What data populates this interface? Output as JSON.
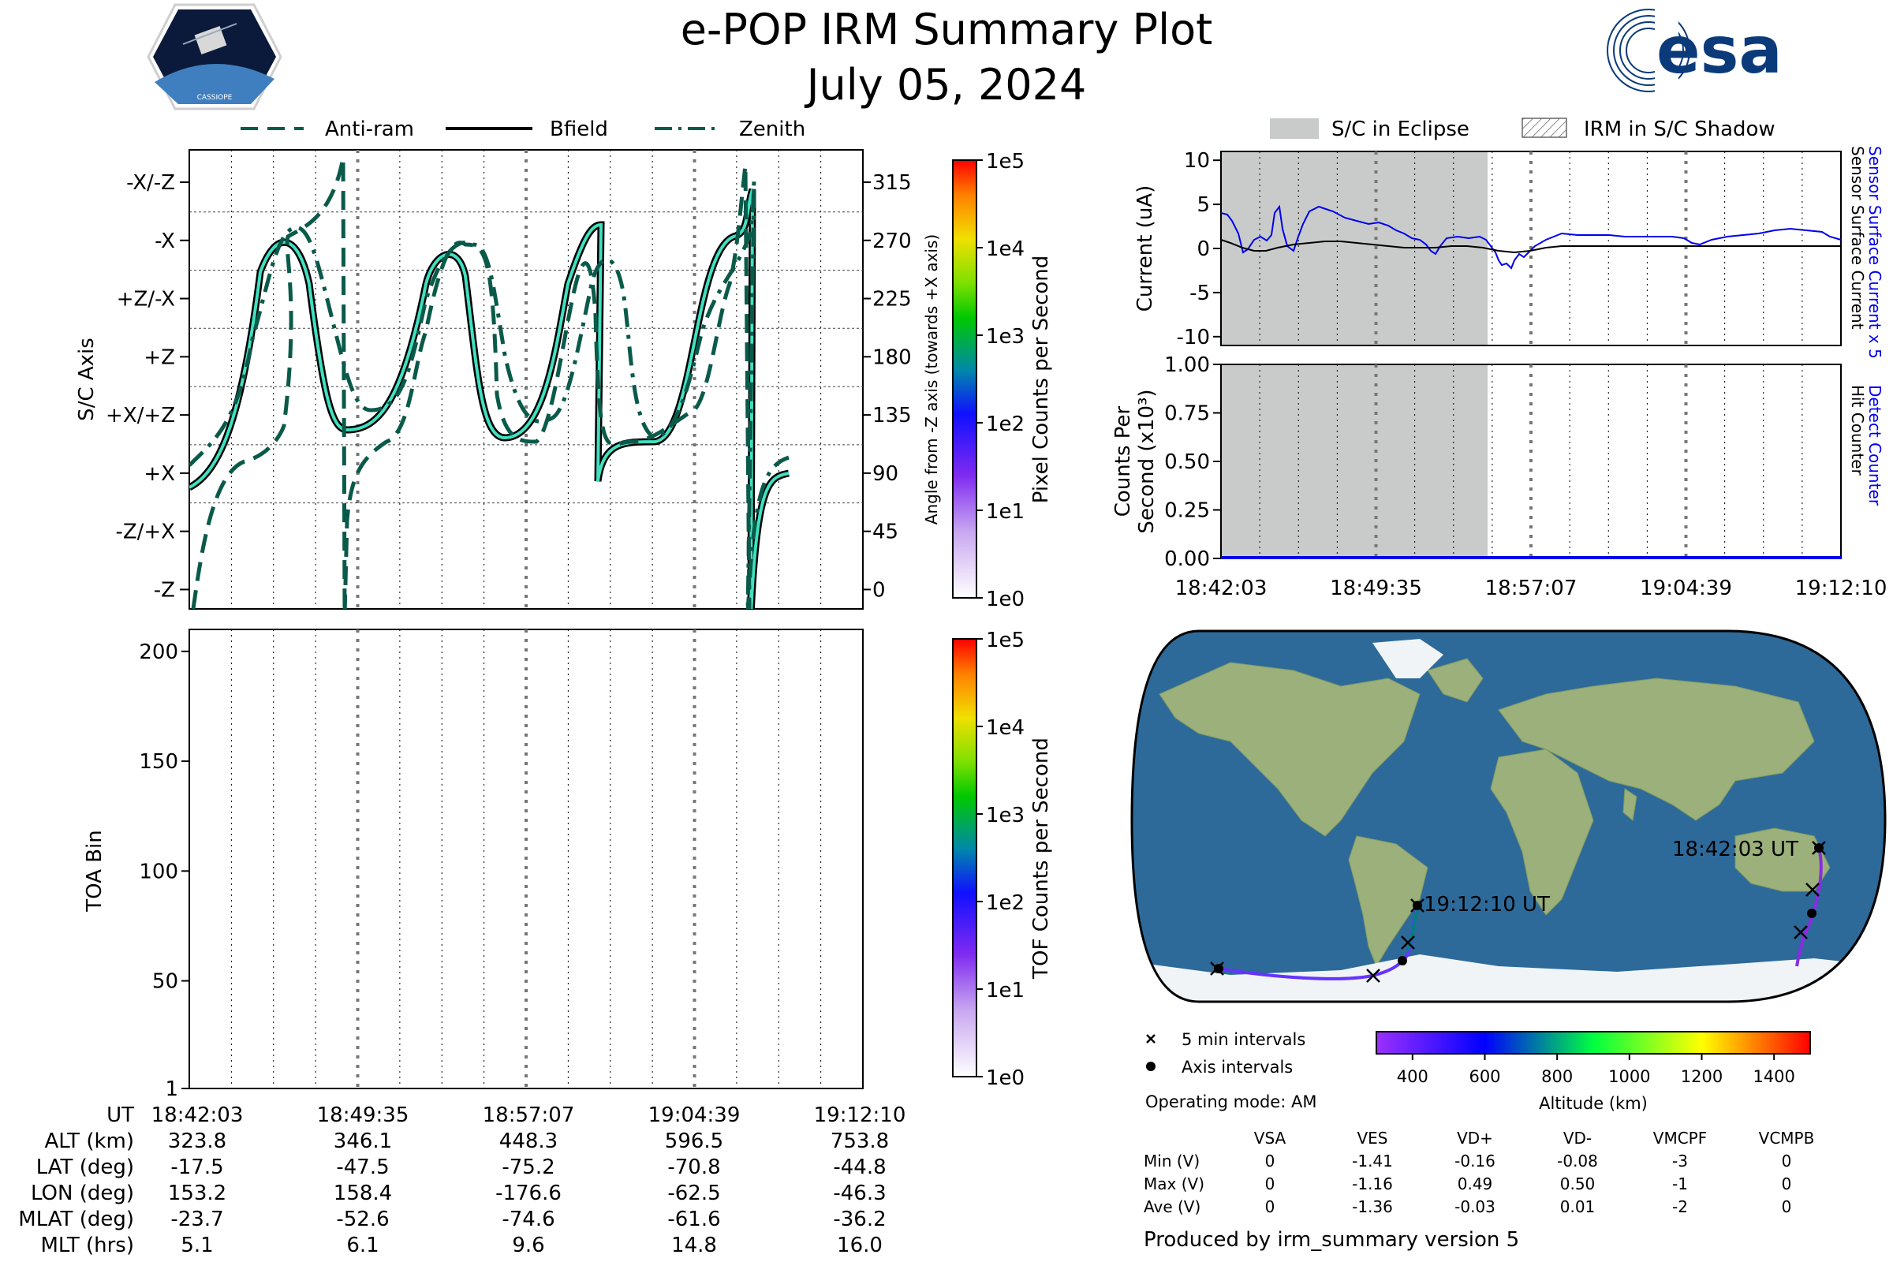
{
  "header": {
    "title": "e-POP IRM Summary Plot",
    "date": "July 05, 2024",
    "mission_logo_text": "CASSIOPE",
    "agency_logo_text": "esa",
    "agency_color": "#0a3a7a"
  },
  "colors": {
    "orientation_line": "#40e0c0",
    "outline": "#000000",
    "eclipse_fill": "#c8cbca",
    "sensor_blue": "#0000ee",
    "track_low": "#8a2be2",
    "ocean": "#2d6a9a",
    "land": "#9bb07a",
    "ice": "#f0f4f6"
  },
  "time_ticks": [
    "18:42:03",
    "18:49:35",
    "18:57:07",
    "19:04:39",
    "19:12:10"
  ],
  "chart_data": [
    {
      "id": "orientation",
      "type": "line",
      "ylabel": "S/C Axis",
      "y2label": "Angle from -Z axis (towards +X axis)",
      "ylim": [
        -15,
        340
      ],
      "axis_labels": [
        {
          "label": "-X/-Z",
          "angle": 315
        },
        {
          "label": "-X",
          "angle": 270
        },
        {
          "label": "+Z/-X",
          "angle": 225
        },
        {
          "label": "+Z",
          "angle": 180
        },
        {
          "label": "+X/+Z",
          "angle": 135
        },
        {
          "label": "+X",
          "angle": 90
        },
        {
          "label": "-Z/+X",
          "angle": 45
        },
        {
          "label": "-Z",
          "angle": 0
        }
      ],
      "angle_ticks": [
        315,
        270,
        225,
        180,
        135,
        90,
        45,
        0
      ],
      "legend": [
        "Anti-ram",
        "Bfield",
        "Zenith"
      ],
      "colorbar": {
        "label": "Pixel Counts per Second",
        "ticks": [
          "1e5",
          "1e4",
          "1e3",
          "1e2",
          "1e1",
          "1e0"
        ]
      }
    },
    {
      "id": "toa",
      "type": "heatmap",
      "ylabel": "TOA Bin",
      "ylim": [
        1,
        210
      ],
      "yticks": [
        200,
        150,
        100,
        50,
        1
      ],
      "colorbar": {
        "label": "TOF Counts per Second",
        "ticks": [
          "1e5",
          "1e4",
          "1e3",
          "1e2",
          "1e1",
          "1e0"
        ]
      }
    },
    {
      "id": "current",
      "type": "line",
      "ylabel": "Current (uA)",
      "ylim": [
        -11,
        11
      ],
      "yticks": [
        10,
        5,
        0,
        -5,
        -10
      ],
      "legend": [
        "S/C in Eclipse",
        "IRM in S/C Shadow"
      ],
      "right_labels": [
        "Sensor Surface Current x 5",
        "Sensor Surface Current"
      ],
      "eclipse_fraction": [
        0,
        0.43
      ]
    },
    {
      "id": "counts",
      "type": "line",
      "ylabel_lines": [
        "Counts Per",
        "Second (x10³)"
      ],
      "ylim": [
        0,
        1
      ],
      "yticks": [
        "1.00",
        "0.75",
        "0.50",
        "0.25",
        "0.00"
      ],
      "right_labels": [
        "Detect Counter",
        "Hit Counter"
      ],
      "eclipse_fraction": [
        0,
        0.43
      ]
    },
    {
      "id": "track",
      "type": "scatter",
      "labels": [
        "18:42:03 UT",
        "19:12:10 UT"
      ],
      "legend": [
        "5 min intervals",
        "Axis intervals"
      ],
      "colorbar": {
        "label": "Altitude (km)",
        "ticks": [
          "400",
          "600",
          "800",
          "1000",
          "1200",
          "1400"
        ],
        "range": [
          300,
          1500
        ]
      }
    }
  ],
  "ephemeris": {
    "rows": [
      {
        "label": "UT",
        "values": [
          "18:42:03",
          "18:49:35",
          "18:57:07",
          "19:04:39",
          "19:12:10"
        ]
      },
      {
        "label": "ALT (km)",
        "values": [
          "323.8",
          "346.1",
          "448.3",
          "596.5",
          "753.8"
        ]
      },
      {
        "label": "LAT (deg)",
        "values": [
          "-17.5",
          "-47.5",
          "-75.2",
          "-70.8",
          "-44.8"
        ]
      },
      {
        "label": "LON (deg)",
        "values": [
          "153.2",
          "158.4",
          "-176.6",
          "-62.5",
          "-46.3"
        ]
      },
      {
        "label": "MLAT (deg)",
        "values": [
          "-23.7",
          "-52.6",
          "-74.6",
          "-61.6",
          "-36.2"
        ]
      },
      {
        "label": "MLT (hrs)",
        "values": [
          "5.1",
          "6.1",
          "9.6",
          "14.8",
          "16.0"
        ]
      }
    ]
  },
  "operating_mode": "Operating mode: AM",
  "voltages": {
    "headers": [
      "VSA",
      "VES",
      "VD+",
      "VD-",
      "VMCPF",
      "VCMPB"
    ],
    "rows": [
      {
        "label": "Min (V)",
        "values": [
          "0",
          "-1.41",
          "-0.16",
          "-0.08",
          "-3",
          "0"
        ]
      },
      {
        "label": "Max (V)",
        "values": [
          "0",
          "-1.16",
          "0.49",
          "0.50",
          "-1",
          "0"
        ]
      },
      {
        "label": "Ave (V)",
        "values": [
          "0",
          "-1.36",
          "-0.03",
          "0.01",
          "-2",
          "0"
        ]
      }
    ]
  },
  "footer": "Produced by irm_summary version 5"
}
